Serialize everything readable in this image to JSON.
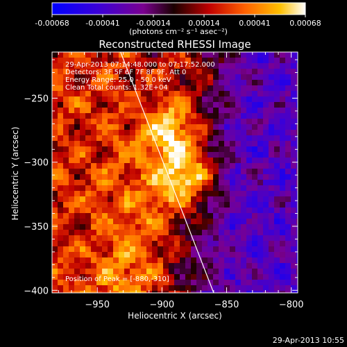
{
  "colorbar": {
    "tick_labels": [
      "-0.00068",
      "-0.00041",
      "-0.00014",
      "0.00014",
      "0.00041",
      "0.00068"
    ],
    "unit_label": "(photons cm⁻² s⁻¹ asec⁻²)",
    "colors": [
      "#0000ff",
      "#3a00d8",
      "#7a0090",
      "#1a0000",
      "#c00000",
      "#ff6000",
      "#ffc000",
      "#ffffff"
    ]
  },
  "chart_data": {
    "type": "heatmap",
    "title": "Reconstructed RHESSI Image",
    "xlabel": "Heliocentric X (arcsec)",
    "ylabel": "Heliocentric Y (arcsec)",
    "xlim": [
      -985,
      -795
    ],
    "ylim": [
      -402,
      -214
    ],
    "x_ticks": [
      -950,
      -900,
      -850,
      -800
    ],
    "y_ticks": [
      -250,
      -300,
      -350,
      -400
    ],
    "x_tick_labels": [
      "−950",
      "−900",
      "−850",
      "−800"
    ],
    "y_tick_labels": [
      "−250",
      "−300",
      "−350",
      "−400"
    ],
    "peak": [
      -880,
      -310
    ],
    "limb_line": [
      [
        -932,
        -214
      ],
      [
        -860,
        -402
      ]
    ],
    "grid": false,
    "legend": "none"
  },
  "annotations": {
    "time_range": "29-Apr-2013 07:14:48.000 to 07:17:52.000",
    "detectors": "Detectors: 3F 5F 6F 7F 8F 9F, Att 0",
    "energy": "Energy Range: 25.0 - 50.0 keV",
    "clean": "Clean    Total counts: 1.32E+04",
    "peak_position": "Position of Peak = [-880,-310]"
  },
  "footer_timestamp": "29-Apr-2013 10:55"
}
